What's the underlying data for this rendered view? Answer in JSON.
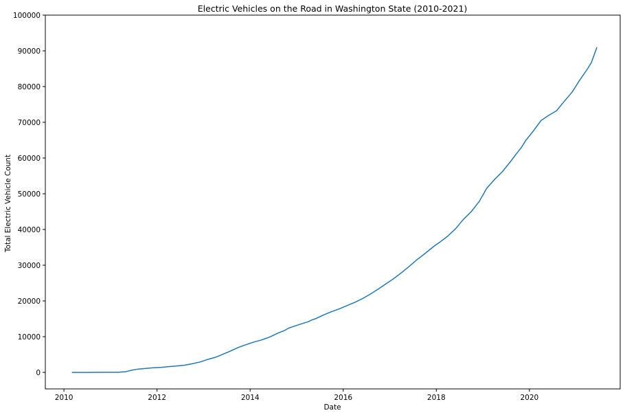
{
  "chart_data": {
    "type": "line",
    "title": "Electric Vehicles on the Road in Washington State (2010-2021)",
    "xlabel": "Date",
    "ylabel": "Total Electric Vehicle Count",
    "xlim": [
      2009.6,
      2021.95
    ],
    "ylim": [
      -5000,
      100000
    ],
    "x_ticks": [
      2010,
      2012,
      2014,
      2016,
      2018,
      2020
    ],
    "x_tick_labels": [
      "2010",
      "2012",
      "2014",
      "2016",
      "2018",
      "2020"
    ],
    "y_ticks": [
      0,
      10000,
      20000,
      30000,
      40000,
      50000,
      60000,
      70000,
      80000,
      90000,
      100000
    ],
    "y_tick_labels": [
      "0",
      "10000",
      "20000",
      "30000",
      "40000",
      "50000",
      "60000",
      "70000",
      "80000",
      "90000",
      "100000"
    ],
    "grid": false,
    "legend": "none",
    "line_color": "#1f77b4",
    "series": [
      {
        "x": [
          2010.17,
          2010.5,
          2010.83,
          2011.0,
          2011.17,
          2011.33,
          2011.45,
          2011.58,
          2011.75,
          2011.92,
          2012.08,
          2012.25,
          2012.42,
          2012.58,
          2012.75,
          2012.92,
          2013.08,
          2013.25,
          2013.42,
          2013.58,
          2013.75,
          2013.92,
          2014.08,
          2014.25,
          2014.42,
          2014.58,
          2014.75,
          2014.83,
          2014.92,
          2015.08,
          2015.25,
          2015.33,
          2015.42,
          2015.58,
          2015.75,
          2015.92,
          2016.08,
          2016.25,
          2016.42,
          2016.58,
          2016.75,
          2016.92,
          2017.08,
          2017.25,
          2017.42,
          2017.58,
          2017.75,
          2017.92,
          2018.0,
          2018.08,
          2018.25,
          2018.42,
          2018.58,
          2018.75,
          2018.92,
          2019.08,
          2019.25,
          2019.42,
          2019.58,
          2019.75,
          2019.83,
          2019.92,
          2020.08,
          2020.25,
          2020.42,
          2020.58,
          2020.75,
          2020.92,
          2021.08,
          2021.25,
          2021.33,
          2021.45
        ],
        "y": [
          0,
          0,
          50,
          50,
          50,
          200,
          600,
          900,
          1100,
          1300,
          1400,
          1600,
          1800,
          2000,
          2400,
          2900,
          3600,
          4200,
          5100,
          6000,
          7000,
          7800,
          8500,
          9100,
          9900,
          10900,
          11800,
          12400,
          12800,
          13500,
          14200,
          14700,
          15100,
          16100,
          17000,
          17800,
          18700,
          19600,
          20700,
          21900,
          23300,
          24800,
          26200,
          27900,
          29700,
          31500,
          33200,
          35000,
          35800,
          36500,
          38200,
          40300,
          42800,
          45000,
          47800,
          51500,
          54000,
          56200,
          58800,
          61700,
          63000,
          64900,
          67500,
          70500,
          72000,
          73200,
          75900,
          78500,
          81800,
          85000,
          86700,
          91000
        ]
      }
    ]
  }
}
